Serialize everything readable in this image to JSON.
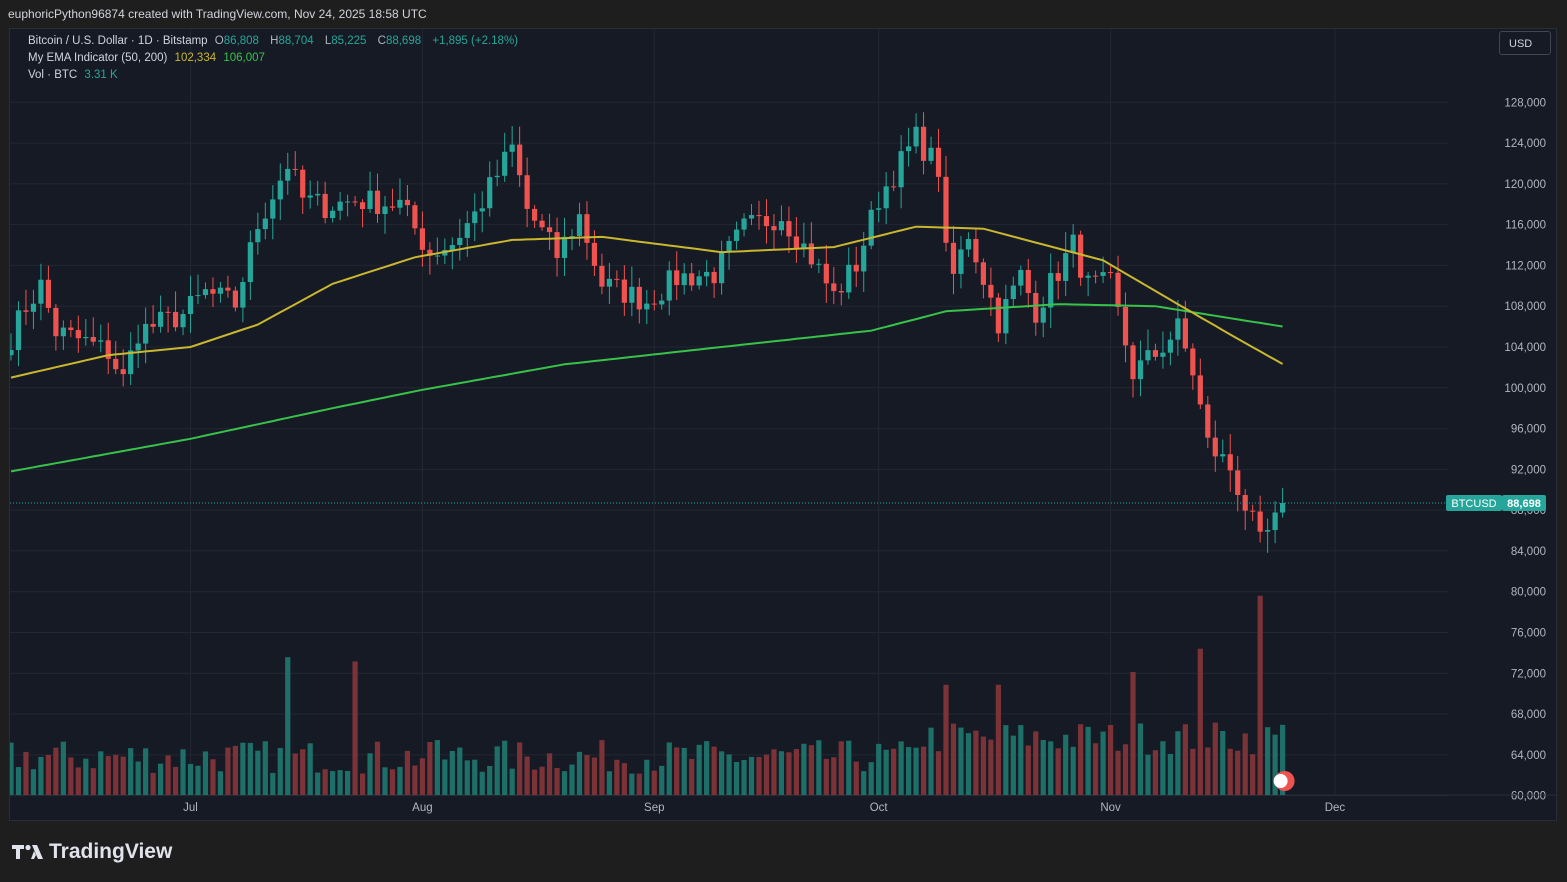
{
  "caption": "euphoricPython96874 created with TradingView.com, Nov 24, 2025 18:58 UTC",
  "legend": {
    "symbol": "Bitcoin / U.S. Dollar · 1D · Bitstamp",
    "o_label": "O",
    "o": "86,808",
    "h_label": "H",
    "h": "88,704",
    "l_label": "L",
    "l": "85,225",
    "c_label": "C",
    "c": "88,698",
    "change": "+1,895 (+2.18%)",
    "ema_name": "My EMA Indicator (50, 200)",
    "ema50": "102,334",
    "ema200": "106,007",
    "vol_name": "Vol · BTC",
    "vol": "3.31 K"
  },
  "currency_button": "USD",
  "price_tag": {
    "symbol": "BTCUSD",
    "price": "88,698"
  },
  "branding": "TradingView",
  "colors": {
    "up": "#26a69a",
    "down": "#ef5350",
    "ema50": "#c9b72f",
    "ema200": "#39c24a",
    "vol_up": "#1f6f69",
    "vol_down": "#7c3337"
  },
  "chart_data": {
    "type": "candlestick",
    "y_ticks": [
      60000,
      64000,
      68000,
      72000,
      76000,
      80000,
      84000,
      88000,
      92000,
      96000,
      100000,
      104000,
      108000,
      112000,
      116000,
      120000,
      124000,
      128000
    ],
    "y_tick_labels": [
      "60,000",
      "64,000",
      "68,000",
      "72,000",
      "76,000",
      "80,000",
      "84,000",
      "88,000",
      "92,000",
      "96,000",
      "100,000",
      "104,000",
      "108,000",
      "112,000",
      "116,000",
      "120,000",
      "124,000",
      "128,000"
    ],
    "x_labels": [
      {
        "label": "Jul",
        "date": "2025-07-01"
      },
      {
        "label": "Aug",
        "date": "2025-08-01"
      },
      {
        "label": "Sep",
        "date": "2025-09-01"
      },
      {
        "label": "Oct",
        "date": "2025-10-01"
      },
      {
        "label": "Nov",
        "date": "2025-11-01"
      },
      {
        "label": "Dec",
        "date": "2025-12-01"
      }
    ],
    "first_date": "2025-06-07",
    "last_date": "2025-11-24",
    "close_anchors": [
      [
        "2025-06-07",
        105000
      ],
      [
        "2025-06-09",
        108000
      ],
      [
        "2025-06-11",
        110000
      ],
      [
        "2025-06-13",
        105500
      ],
      [
        "2025-06-17",
        104500
      ],
      [
        "2025-06-20",
        103500
      ],
      [
        "2025-06-22",
        100800
      ],
      [
        "2025-06-24",
        105500
      ],
      [
        "2025-06-30",
        107200
      ],
      [
        "2025-07-03",
        109300
      ],
      [
        "2025-07-07",
        108200
      ],
      [
        "2025-07-10",
        116000
      ],
      [
        "2025-07-14",
        122000
      ],
      [
        "2025-07-16",
        118500
      ],
      [
        "2025-07-19",
        117800
      ],
      [
        "2025-07-23",
        118400
      ],
      [
        "2025-07-29",
        118000
      ],
      [
        "2025-08-02",
        113200
      ],
      [
        "2025-08-05",
        114200
      ],
      [
        "2025-08-08",
        117000
      ],
      [
        "2025-08-13",
        123500
      ],
      [
        "2025-08-15",
        117500
      ],
      [
        "2025-08-19",
        113000
      ],
      [
        "2025-08-22",
        116800
      ],
      [
        "2025-08-25",
        110200
      ],
      [
        "2025-08-31",
        108500
      ],
      [
        "2025-09-04",
        110800
      ],
      [
        "2025-09-09",
        111200
      ],
      [
        "2025-09-13",
        115600
      ],
      [
        "2025-09-18",
        117000
      ],
      [
        "2025-09-22",
        112800
      ],
      [
        "2025-09-25",
        109000
      ],
      [
        "2025-09-28",
        112100
      ],
      [
        "2025-10-01",
        118600
      ],
      [
        "2025-10-06",
        124500
      ],
      [
        "2025-10-09",
        121500
      ],
      [
        "2025-10-10",
        113000
      ],
      [
        "2025-10-11",
        111000
      ],
      [
        "2025-10-13",
        115200
      ],
      [
        "2025-10-17",
        106500
      ],
      [
        "2025-10-20",
        111000
      ],
      [
        "2025-10-22",
        107600
      ],
      [
        "2025-10-27",
        114000
      ],
      [
        "2025-10-29",
        110000
      ],
      [
        "2025-11-01",
        110100
      ],
      [
        "2025-11-04",
        101500
      ],
      [
        "2025-11-07",
        103300
      ],
      [
        "2025-11-10",
        105800
      ],
      [
        "2025-11-12",
        101600
      ],
      [
        "2025-11-14",
        94500
      ],
      [
        "2025-11-17",
        92100
      ],
      [
        "2025-11-20",
        86600
      ],
      [
        "2025-11-21",
        84600
      ],
      [
        "2025-11-23",
        86800
      ],
      [
        "2025-11-24",
        88698
      ]
    ],
    "ema50_anchors": [
      [
        "2025-06-07",
        101000
      ],
      [
        "2025-06-20",
        103200
      ],
      [
        "2025-07-01",
        104000
      ],
      [
        "2025-07-10",
        106200
      ],
      [
        "2025-07-20",
        110200
      ],
      [
        "2025-07-31",
        112800
      ],
      [
        "2025-08-13",
        114500
      ],
      [
        "2025-08-25",
        114800
      ],
      [
        "2025-09-10",
        113300
      ],
      [
        "2025-09-25",
        113800
      ],
      [
        "2025-10-06",
        115800
      ],
      [
        "2025-10-15",
        115600
      ],
      [
        "2025-10-31",
        112500
      ],
      [
        "2025-11-10",
        108200
      ],
      [
        "2025-11-18",
        104800
      ],
      [
        "2025-11-24",
        102334
      ]
    ],
    "ema200_anchors": [
      [
        "2025-06-07",
        91800
      ],
      [
        "2025-07-01",
        95000
      ],
      [
        "2025-07-20",
        98000
      ],
      [
        "2025-08-01",
        99800
      ],
      [
        "2025-08-20",
        102300
      ],
      [
        "2025-09-10",
        104000
      ],
      [
        "2025-09-30",
        105600
      ],
      [
        "2025-10-10",
        107500
      ],
      [
        "2025-10-25",
        108200
      ],
      [
        "2025-11-07",
        108000
      ],
      [
        "2025-11-24",
        106007
      ]
    ],
    "volume_spikes": [
      [
        "2025-07-14",
        6.5
      ],
      [
        "2025-07-23",
        6.3
      ],
      [
        "2025-08-02",
        2.5
      ],
      [
        "2025-10-10",
        5.2
      ],
      [
        "2025-10-17",
        5.2
      ],
      [
        "2025-11-04",
        5.8
      ],
      [
        "2025-11-13",
        6.9
      ],
      [
        "2025-11-21",
        9.4
      ],
      [
        "2025-11-24",
        3.31
      ]
    ],
    "grid": true
  }
}
